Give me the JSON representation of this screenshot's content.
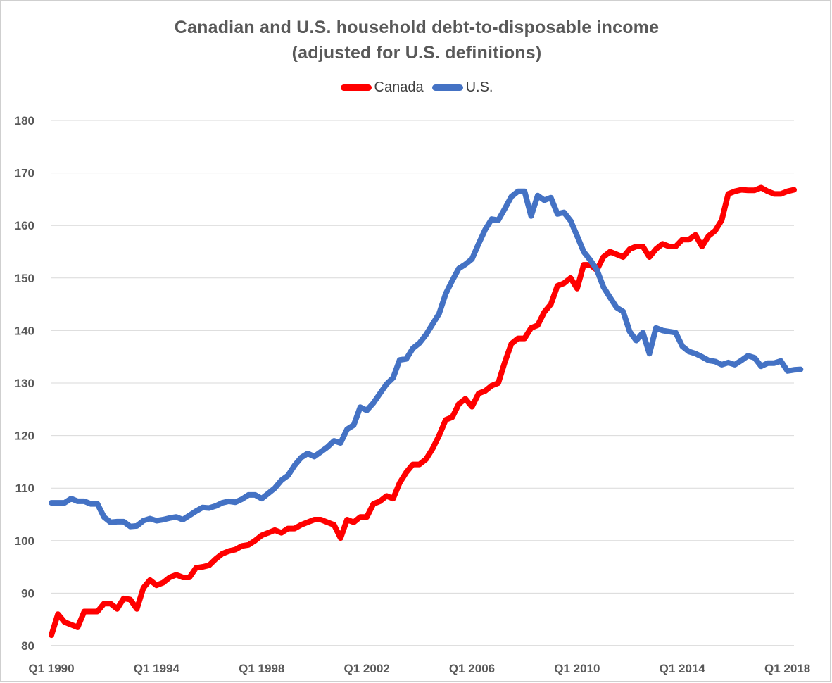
{
  "chart_data": {
    "type": "line",
    "title": "Canadian and U.S. household debt-to-disposable income",
    "subtitle": "(adjusted for U.S. definitions)",
    "xlabel": "",
    "ylabel": "",
    "x_ticks": [
      "Q1 1990",
      "Q1 1994",
      "Q1 1998",
      "Q1 2002",
      "Q1 2006",
      "Q1 2010",
      "Q1 2014",
      "Q1 2018"
    ],
    "x_tick_index": [
      0,
      16,
      32,
      48,
      64,
      80,
      96,
      112
    ],
    "x_range": [
      "Q1 1990",
      "Q4 2018"
    ],
    "ylim": [
      80,
      180
    ],
    "y_ticks": [
      80,
      90,
      100,
      110,
      120,
      130,
      140,
      150,
      160,
      170,
      180
    ],
    "grid": "horizontal",
    "legend_position": "top-center",
    "series": [
      {
        "name": "Canada",
        "color": "#ff0000",
        "values": [
          82,
          86,
          84.5,
          84,
          83.5,
          86.5,
          86.5,
          86.5,
          88,
          88,
          87,
          89,
          88.8,
          87,
          91,
          92.5,
          91.5,
          92,
          93,
          93.5,
          93,
          93,
          94.8,
          95,
          95.3,
          96.5,
          97.5,
          98,
          98.3,
          99,
          99.2,
          100,
          101,
          101.5,
          102,
          101.5,
          102.3,
          102.3,
          103,
          103.5,
          104,
          104,
          103.5,
          103,
          100.5,
          104,
          103.5,
          104.5,
          104.5,
          107,
          107.5,
          108.5,
          108,
          111,
          113,
          114.5,
          114.5,
          115.5,
          117.5,
          120,
          123,
          123.5,
          126,
          127,
          125.5,
          128,
          128.5,
          129.5,
          130,
          134,
          137.5,
          138.5,
          138.5,
          140.5,
          141,
          143.5,
          145,
          148.5,
          149,
          150,
          148,
          152.5,
          152.5,
          151.5,
          154,
          155,
          154.5,
          154,
          155.5,
          156,
          156,
          154,
          155.5,
          156.5,
          156,
          156,
          157.3,
          157.3,
          158.2,
          156,
          158,
          159,
          161,
          166,
          166.5,
          166.8,
          166.7,
          166.7,
          167.2,
          166.5,
          166,
          166,
          166.5,
          166.8
        ]
      },
      {
        "name": "U.S.",
        "color": "#4472c4",
        "values": [
          107.2,
          107.2,
          107.2,
          108,
          107.5,
          107.5,
          107,
          107,
          104.5,
          103.5,
          103.6,
          103.6,
          102.7,
          102.8,
          103.8,
          104.2,
          103.8,
          104,
          104.3,
          104.5,
          104,
          104.8,
          105.6,
          106.3,
          106.2,
          106.6,
          107.2,
          107.5,
          107.3,
          107.9,
          108.7,
          108.7,
          108,
          109,
          110,
          111.5,
          112.4,
          114.3,
          115.8,
          116.6,
          116,
          116.9,
          117.8,
          119,
          118.6,
          121.2,
          122,
          125.4,
          124.8,
          126.2,
          128,
          129.8,
          131,
          134.4,
          134.6,
          136.6,
          137.6,
          139.2,
          141.2,
          143.2,
          147,
          149.5,
          151.8,
          152.6,
          153.6,
          156.5,
          159.2,
          161.2,
          161,
          163.2,
          165.5,
          166.5,
          166.5,
          161.8,
          165.7,
          164.8,
          165.3,
          162.2,
          162.5,
          160.9,
          158,
          155,
          153.4,
          151.6,
          148.3,
          146.3,
          144.4,
          143.6,
          139.8,
          138.1,
          139.6,
          135.6,
          140.5,
          140,
          139.8,
          139.6,
          137,
          136,
          135.6,
          135,
          134.3,
          134.1,
          133.5,
          133.9,
          133.5,
          134.3,
          135.2,
          134.8,
          133.2,
          133.8,
          133.8,
          134.2,
          132.3,
          132.5,
          132.6
        ]
      }
    ]
  }
}
